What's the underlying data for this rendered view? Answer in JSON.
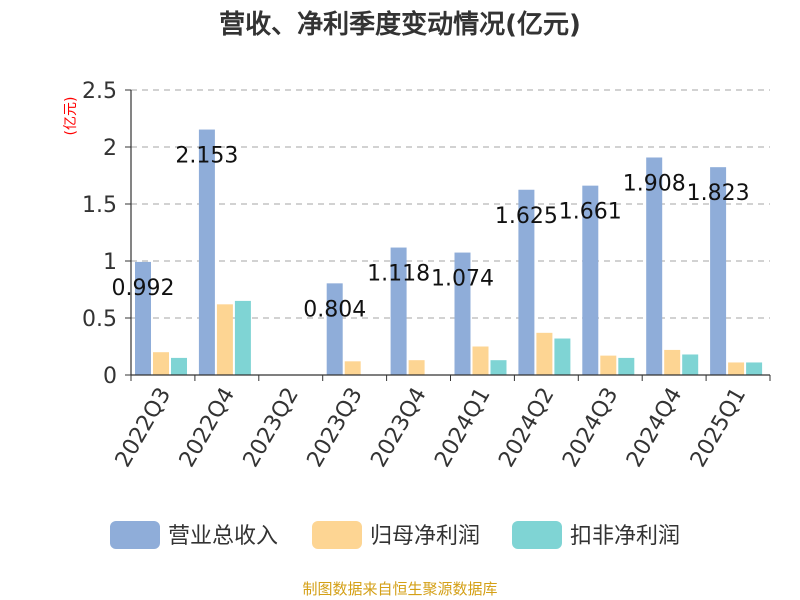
{
  "title": "营收、净利季度变动情况(亿元)",
  "source": "制图数据来自恒生聚源数据库",
  "colors": {
    "revenue": "#8fadd9",
    "net_profit": "#fdd593",
    "deducted_net_profit": "#7fd4d4",
    "ylabel": "#ff0000",
    "grid": "#c4c4c4",
    "axis": "#333333",
    "source": "#d4a017"
  },
  "chart_data": {
    "type": "bar",
    "title": "营收、净利季度变动情况(亿元)",
    "ylabel": "(亿元)",
    "xlabel": "",
    "ylim": [
      0,
      2.5
    ],
    "yticks": [
      0,
      0.5,
      1,
      1.5,
      2,
      2.5
    ],
    "ytick_labels": [
      "0",
      "0.5",
      "1",
      "1.5",
      "2",
      "2.5"
    ],
    "grid": true,
    "legend": "bottom-center",
    "categories": [
      "2022Q3",
      "2022Q4",
      "2023Q2",
      "2023Q3",
      "2023Q4",
      "2024Q1",
      "2024Q2",
      "2024Q3",
      "2024Q4",
      "2025Q1"
    ],
    "series": [
      {
        "name": "营业总收入",
        "values": [
          0.992,
          2.153,
          null,
          0.804,
          1.118,
          1.074,
          1.625,
          1.661,
          1.908,
          1.823
        ],
        "labels": [
          "0.992",
          "2.153",
          "",
          "0.804",
          "1.118",
          "1.074",
          "1.625",
          "1.661",
          "1.908",
          "1.823"
        ]
      },
      {
        "name": "归母净利润",
        "values": [
          0.2,
          0.62,
          null,
          0.12,
          0.13,
          0.25,
          0.37,
          0.17,
          0.22,
          0.11
        ]
      },
      {
        "name": "扣非净利润",
        "values": [
          0.15,
          0.65,
          null,
          null,
          null,
          0.13,
          0.32,
          0.15,
          0.18,
          0.11
        ]
      }
    ]
  }
}
